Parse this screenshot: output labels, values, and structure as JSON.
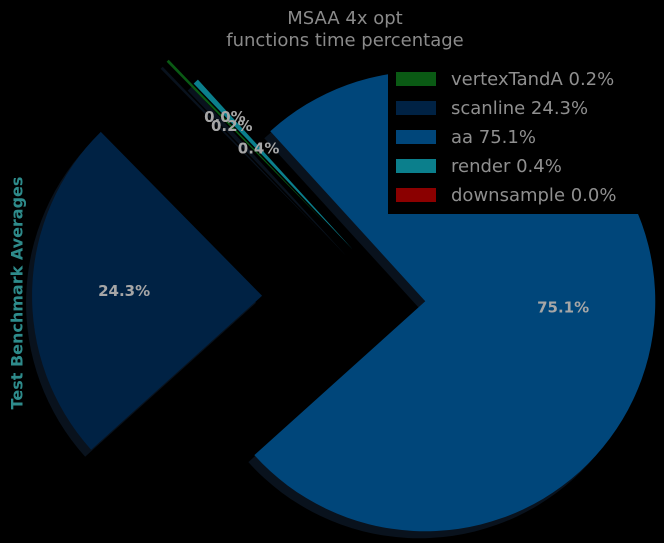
{
  "chart_data": {
    "type": "pie",
    "title": "MSAA 4x opt",
    "subtitle": "functions time percentage",
    "ylabel": "Test Benchmark Averages",
    "categories": [
      "vertexTandA 0.2%",
      "scanline 24.3%",
      "aa 75.1%",
      "render 0.4%",
      "downsample 0.0%"
    ],
    "values": [
      0.2,
      24.3,
      75.1,
      0.4,
      0.0
    ],
    "value_labels": [
      "0.2%",
      "24.3%",
      "75.1%",
      "0.4%",
      "0.0%"
    ],
    "colors": [
      "#0a5a14",
      "#002244",
      "#00467a",
      "#0b7f8c",
      "#8b0000"
    ],
    "legend": "upper right"
  }
}
